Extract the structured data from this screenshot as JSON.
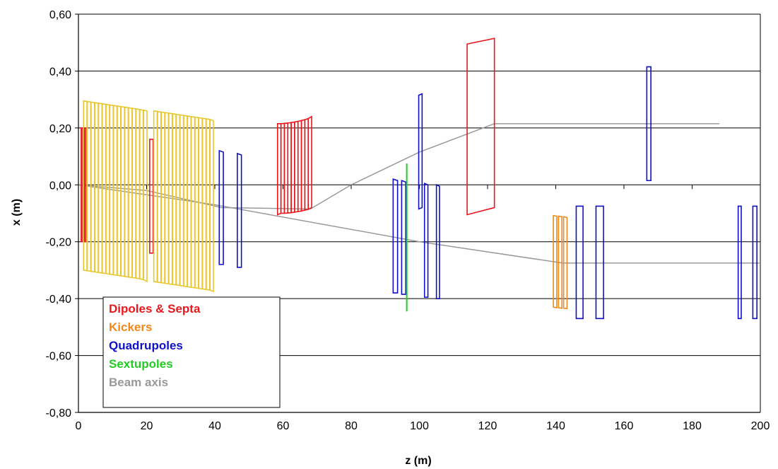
{
  "chart_data": {
    "type": "line",
    "xlabel": "z (m)",
    "ylabel": "x (m)",
    "xlim": [
      0,
      200
    ],
    "ylim": [
      -0.8,
      0.6
    ],
    "x_ticks": [
      0,
      20,
      40,
      60,
      80,
      100,
      120,
      140,
      160,
      180,
      200
    ],
    "x_tick_labels": [
      "0",
      "20",
      "40",
      "60",
      "80",
      "100",
      "120",
      "140",
      "160",
      "180",
      "200"
    ],
    "y_ticks": [
      0.6,
      0.4,
      0.2,
      0.0,
      -0.2,
      -0.4,
      -0.6,
      -0.8
    ],
    "y_tick_labels": [
      "0,60",
      "0,40",
      "0,20",
      "0,00",
      "-0,20",
      "-0,40",
      "-0,60",
      "-0,80"
    ],
    "grid": "horizontal",
    "legend_position": "bottom-left",
    "colors": {
      "dipoles": "#e8181c",
      "kickers": "#f08a1e",
      "kicker_fill": "#e8c830",
      "quadrupoles": "#1010c8",
      "sextupoles": "#22cc22",
      "beam_axis": "#999999"
    },
    "legend": [
      {
        "label": "Dipoles & Septa",
        "color": "#e8181c"
      },
      {
        "label": "Kickers",
        "color": "#f08a1e"
      },
      {
        "label": "Quadrupoles",
        "color": "#1010c8"
      },
      {
        "label": "Sextupoles",
        "color": "#22cc22"
      },
      {
        "label": "Beam axis",
        "color": "#999999"
      }
    ],
    "beam_axes": [
      {
        "name": "Beam axis",
        "points": [
          [
            0,
            0.0
          ],
          [
            20,
            -0.02
          ],
          [
            42,
            -0.08
          ],
          [
            68,
            -0.085
          ],
          [
            80,
            0.0
          ],
          [
            100,
            0.115
          ],
          [
            122,
            0.215
          ],
          [
            188,
            0.215
          ]
        ]
      },
      {
        "name": "Beam axis",
        "points": [
          [
            0,
            0.0
          ],
          [
            40,
            -0.07
          ],
          [
            100,
            -0.2
          ],
          [
            142,
            -0.275
          ],
          [
            200,
            -0.275
          ]
        ]
      }
    ],
    "series": [
      {
        "name": "Dipoles & Septa",
        "color": "#e8181c",
        "elements": [
          [
            0.8,
            -0.2,
            0.2,
            -0.2,
            0.2,
            1.0
          ],
          [
            1.0,
            -0.2,
            0.2,
            -0.2,
            0.2,
            1.0
          ],
          [
            1.4,
            -0.2,
            0.2,
            -0.2,
            0.2,
            1.0
          ],
          [
            20.9,
            -0.24,
            0.16,
            -0.24,
            0.16,
            1.0
          ],
          [
            58.4,
            -0.105,
            0.215,
            -0.1,
            0.215,
            1.0
          ],
          [
            59.4,
            -0.1,
            0.215,
            -0.1,
            0.216,
            1.0
          ],
          [
            60.4,
            -0.1,
            0.216,
            -0.099,
            0.217,
            1.0
          ],
          [
            61.4,
            -0.099,
            0.217,
            -0.098,
            0.219,
            1.0
          ],
          [
            62.4,
            -0.098,
            0.219,
            -0.096,
            0.221,
            1.0
          ],
          [
            63.4,
            -0.096,
            0.221,
            -0.094,
            0.223,
            1.0
          ],
          [
            64.4,
            -0.094,
            0.223,
            -0.092,
            0.226,
            1.0
          ],
          [
            65.4,
            -0.092,
            0.226,
            -0.089,
            0.229,
            1.0
          ],
          [
            66.4,
            -0.089,
            0.229,
            -0.086,
            0.233,
            1.0
          ],
          [
            67.4,
            -0.086,
            0.233,
            -0.08,
            0.24,
            1.0
          ],
          [
            114.0,
            -0.105,
            0.495,
            -0.08,
            0.515,
            8.0
          ]
        ]
      },
      {
        "name": "Kickers",
        "color": "#e8c830",
        "elements": [
          [
            1.5,
            -0.3,
            0.295,
            -0.302,
            0.293,
            1.0
          ],
          [
            2.6,
            -0.302,
            0.293,
            -0.304,
            0.291,
            1.0
          ],
          [
            3.7,
            -0.304,
            0.291,
            -0.306,
            0.289,
            1.0
          ],
          [
            4.8,
            -0.306,
            0.289,
            -0.308,
            0.287,
            1.0
          ],
          [
            5.9,
            -0.308,
            0.287,
            -0.31,
            0.285,
            1.0
          ],
          [
            7.0,
            -0.31,
            0.285,
            -0.312,
            0.283,
            1.0
          ],
          [
            8.1,
            -0.312,
            0.283,
            -0.314,
            0.281,
            1.0
          ],
          [
            9.2,
            -0.314,
            0.281,
            -0.316,
            0.279,
            1.0
          ],
          [
            10.3,
            -0.316,
            0.279,
            -0.318,
            0.277,
            1.0
          ],
          [
            11.4,
            -0.318,
            0.277,
            -0.32,
            0.275,
            1.0
          ],
          [
            12.5,
            -0.32,
            0.275,
            -0.322,
            0.273,
            1.0
          ],
          [
            13.6,
            -0.322,
            0.273,
            -0.324,
            0.271,
            1.0
          ],
          [
            14.7,
            -0.324,
            0.271,
            -0.326,
            0.269,
            1.0
          ],
          [
            15.8,
            -0.326,
            0.269,
            -0.328,
            0.267,
            1.0
          ],
          [
            16.9,
            -0.328,
            0.267,
            -0.33,
            0.265,
            1.0
          ],
          [
            18.0,
            -0.33,
            0.265,
            -0.333,
            0.262,
            1.0
          ],
          [
            19.1,
            -0.333,
            0.262,
            -0.34,
            0.26,
            1.0
          ],
          [
            22.1,
            -0.34,
            0.26,
            -0.342,
            0.258,
            1.0
          ],
          [
            23.2,
            -0.342,
            0.258,
            -0.344,
            0.256,
            1.0
          ],
          [
            24.3,
            -0.344,
            0.256,
            -0.346,
            0.254,
            1.0
          ],
          [
            25.4,
            -0.346,
            0.254,
            -0.348,
            0.252,
            1.0
          ],
          [
            26.5,
            -0.348,
            0.252,
            -0.35,
            0.25,
            1.0
          ],
          [
            27.6,
            -0.35,
            0.25,
            -0.352,
            0.248,
            1.0
          ],
          [
            28.7,
            -0.352,
            0.248,
            -0.354,
            0.246,
            1.0
          ],
          [
            29.8,
            -0.354,
            0.246,
            -0.356,
            0.244,
            1.0
          ],
          [
            30.9,
            -0.356,
            0.244,
            -0.358,
            0.242,
            1.0
          ],
          [
            32.0,
            -0.358,
            0.242,
            -0.36,
            0.24,
            1.0
          ],
          [
            33.1,
            -0.36,
            0.24,
            -0.362,
            0.238,
            1.0
          ],
          [
            34.2,
            -0.362,
            0.238,
            -0.364,
            0.236,
            1.0
          ],
          [
            35.3,
            -0.364,
            0.236,
            -0.366,
            0.234,
            1.0
          ],
          [
            36.4,
            -0.366,
            0.234,
            -0.368,
            0.232,
            1.0
          ],
          [
            37.5,
            -0.368,
            0.232,
            -0.37,
            0.23,
            1.0
          ],
          [
            38.6,
            -0.37,
            0.23,
            -0.375,
            0.225,
            1.0
          ]
        ]
      },
      {
        "name": "Kickers",
        "color": "#f08a1e",
        "elements": [
          [
            139.3,
            -0.43,
            -0.108,
            -0.432,
            -0.11,
            1.0
          ],
          [
            140.8,
            -0.432,
            -0.11,
            -0.434,
            -0.112,
            1.0
          ],
          [
            142.3,
            -0.434,
            -0.112,
            -0.435,
            -0.115,
            1.0
          ]
        ]
      },
      {
        "name": "Quadrupoles",
        "color": "#1010c8",
        "elements": [
          [
            41.3,
            -0.28,
            0.12,
            -0.28,
            0.115,
            1.2
          ],
          [
            46.6,
            -0.29,
            0.11,
            -0.29,
            0.105,
            1.2
          ],
          [
            92.3,
            -0.38,
            0.02,
            -0.38,
            0.015,
            1.3
          ],
          [
            94.8,
            -0.385,
            0.015,
            -0.385,
            0.01,
            1.2
          ],
          [
            99.8,
            -0.085,
            0.315,
            -0.08,
            0.32,
            1.0
          ],
          [
            101.5,
            -0.395,
            0.005,
            -0.395,
            0.0,
            1.0
          ],
          [
            105.0,
            -0.4,
            0.0,
            -0.4,
            -0.005,
            0.9
          ],
          [
            146.0,
            -0.47,
            -0.075,
            -0.47,
            -0.075,
            2.0
          ],
          [
            151.8,
            -0.47,
            -0.075,
            -0.47,
            -0.075,
            2.2
          ],
          [
            166.7,
            0.015,
            0.415,
            0.015,
            0.415,
            1.2
          ],
          [
            193.5,
            -0.47,
            -0.075,
            -0.47,
            -0.075,
            0.9
          ],
          [
            197.8,
            -0.47,
            -0.075,
            -0.47,
            -0.075,
            1.2
          ]
        ]
      },
      {
        "name": "Sextupoles",
        "color": "#22cc22",
        "elements": [
          [
            96.3,
            -0.445,
            0.075,
            -0.445,
            0.075,
            0.0
          ]
        ]
      }
    ]
  }
}
